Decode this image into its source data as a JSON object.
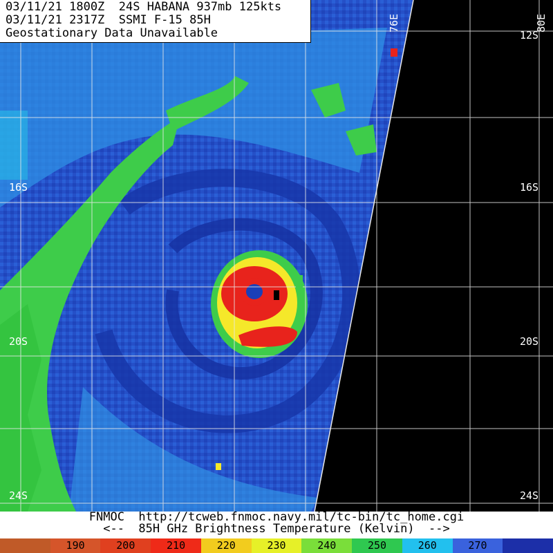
{
  "header": {
    "line1": "03/11/21 1800Z  24S HABANA 937mb 125kts",
    "line2": "03/11/21 2317Z  SSMI F-15 85H",
    "line3": "Geostationary Data Unavailable"
  },
  "map": {
    "lat_labels": [
      "16S",
      "20S",
      "24S"
    ],
    "lat_labels_right": [
      "12S",
      "16S",
      "20S",
      "24S"
    ],
    "lon_labels": [
      "76E",
      "80E"
    ],
    "colors": {
      "ocean_deep": "#1a3fb8",
      "ocean_mid": "#2a66d8",
      "cyan": "#25c8ea",
      "green": "#3ecc4a",
      "yellow": "#f5e82a",
      "red": "#e8231c",
      "no_data": "#000000",
      "grid": "#e8e8e8"
    }
  },
  "footer": {
    "line1": "FNMOC  http://tcweb.fnmoc.navy.mil/tc-bin/tc_home.cgi",
    "line2": "<--  85H GHz Brightness Temperature (Kelvin)  -->"
  },
  "colorbar": {
    "segments": [
      {
        "label": "",
        "color": "#c05a28"
      },
      {
        "label": "190",
        "color": "#d5552a"
      },
      {
        "label": "200",
        "color": "#e0401f"
      },
      {
        "label": "210",
        "color": "#ef2a18"
      },
      {
        "label": "220",
        "color": "#f2cc1e"
      },
      {
        "label": "230",
        "color": "#e6f028"
      },
      {
        "label": "240",
        "color": "#7ade3a"
      },
      {
        "label": "250",
        "color": "#2fc850"
      },
      {
        "label": "260",
        "color": "#22c0ee"
      },
      {
        "label": "270",
        "color": "#3a62dd"
      },
      {
        "label": "",
        "color": "#1c2fa8"
      }
    ]
  }
}
